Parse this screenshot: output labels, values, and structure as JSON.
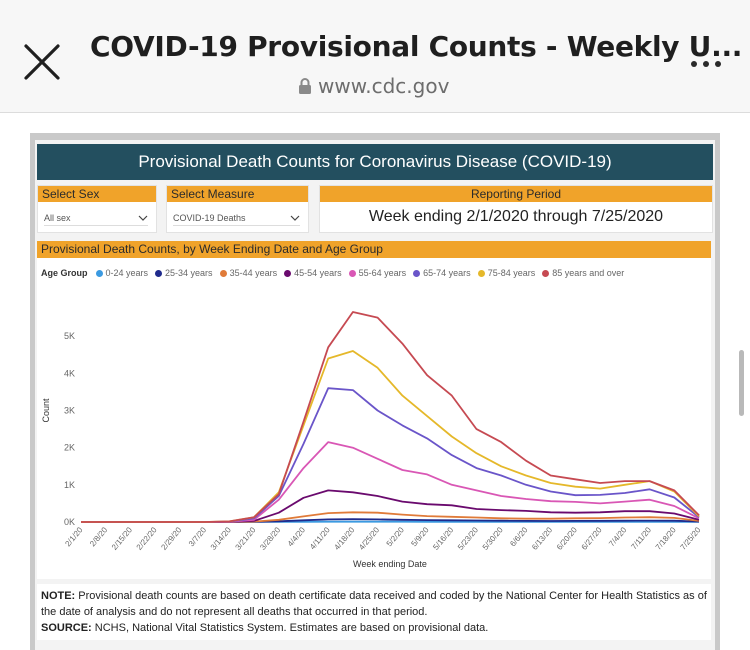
{
  "browser": {
    "title": "COVID-19 Provisional Counts - Weekly U...",
    "url": "www.cdc.gov",
    "close_icon": "close-icon",
    "lock_icon": "lock-icon",
    "more_icon": "more-horizontal-icon"
  },
  "report": {
    "header": "Provisional Death Counts for Coronavirus Disease (COVID-19)",
    "filters": {
      "sex_label": "Select Sex",
      "sex_value": "All sex",
      "measure_label": "Select Measure",
      "measure_value": "COVID-19 Deaths",
      "period_label": "Reporting Period",
      "period_value": "Week ending 2/1/2020 through 7/25/2020"
    },
    "note_label": "NOTE:",
    "note_text": "Provisional death counts are based on death certificate data received and coded by the National Center for Health Statistics as of the date of analysis and do not represent all deaths that occurred in that period.",
    "source_label": "SOURCE:",
    "source_text": "NCHS, National Vital Statistics System. Estimates are based on provisional data."
  },
  "chart_data": {
    "type": "line",
    "title": "Provisional Death Counts, by Week Ending Date and Age Group",
    "legend_title": "Age Group",
    "xlabel": "Week ending Date",
    "ylabel": "Count",
    "ylim": [
      0,
      6000
    ],
    "yticks": [
      0,
      1000,
      2000,
      3000,
      4000,
      5000
    ],
    "ytick_labels": [
      "0K",
      "1K",
      "2K",
      "3K",
      "4K",
      "5K"
    ],
    "x": [
      "2/1/20",
      "2/8/20",
      "2/15/20",
      "2/22/20",
      "2/29/20",
      "3/7/20",
      "3/14/20",
      "3/21/20",
      "3/28/20",
      "4/4/20",
      "4/11/20",
      "4/18/20",
      "4/25/20",
      "5/2/20",
      "5/9/20",
      "5/16/20",
      "5/23/20",
      "5/30/20",
      "6/6/20",
      "6/13/20",
      "6/20/20",
      "6/27/20",
      "7/4/20",
      "7/11/20",
      "7/18/20",
      "7/25/20"
    ],
    "series": [
      {
        "name": "0-24 years",
        "color": "#3b9ae1",
        "values": [
          0,
          0,
          0,
          0,
          0,
          0,
          0,
          2,
          4,
          6,
          8,
          9,
          8,
          7,
          6,
          6,
          5,
          5,
          4,
          4,
          5,
          5,
          5,
          5,
          5,
          2
        ]
      },
      {
        "name": "25-34 years",
        "color": "#1f2a8c",
        "values": [
          0,
          0,
          0,
          0,
          0,
          0,
          1,
          5,
          20,
          45,
          70,
          75,
          70,
          60,
          50,
          45,
          40,
          35,
          30,
          28,
          30,
          32,
          35,
          38,
          35,
          10
        ]
      },
      {
        "name": "35-44 years",
        "color": "#e07b39",
        "values": [
          0,
          0,
          0,
          0,
          0,
          0,
          1,
          10,
          60,
          150,
          240,
          260,
          250,
          200,
          160,
          140,
          120,
          100,
          90,
          90,
          100,
          105,
          120,
          130,
          110,
          30
        ]
      },
      {
        "name": "45-54 years",
        "color": "#6a0a6e",
        "values": [
          0,
          0,
          0,
          0,
          0,
          0,
          2,
          30,
          250,
          650,
          850,
          800,
          700,
          550,
          480,
          450,
          350,
          320,
          300,
          260,
          250,
          260,
          290,
          290,
          230,
          60
        ]
      },
      {
        "name": "55-64 years",
        "color": "#d957b5",
        "values": [
          0,
          0,
          0,
          0,
          0,
          0,
          5,
          60,
          600,
          1450,
          2150,
          2000,
          1700,
          1400,
          1280,
          1000,
          850,
          700,
          620,
          560,
          540,
          500,
          550,
          600,
          430,
          100
        ]
      },
      {
        "name": "65-74 years",
        "color": "#6a55c9",
        "values": [
          0,
          0,
          0,
          0,
          0,
          0,
          10,
          100,
          700,
          2100,
          3600,
          3550,
          3000,
          2600,
          2250,
          1800,
          1450,
          1250,
          1000,
          820,
          720,
          730,
          780,
          880,
          660,
          130
        ]
      },
      {
        "name": "75-84 years",
        "color": "#e5b82a",
        "values": [
          0,
          0,
          0,
          0,
          0,
          0,
          15,
          130,
          800,
          2600,
          4400,
          4600,
          4150,
          3400,
          2850,
          2300,
          1850,
          1500,
          1250,
          1050,
          950,
          900,
          1000,
          1100,
          820,
          150
        ]
      },
      {
        "name": "85 years and over",
        "color": "#c64a52",
        "values": [
          0,
          0,
          0,
          0,
          0,
          0,
          15,
          130,
          750,
          2700,
          4700,
          5650,
          5500,
          4800,
          3950,
          3400,
          2500,
          2150,
          1650,
          1250,
          1150,
          1050,
          1100,
          1100,
          850,
          180
        ]
      }
    ]
  }
}
